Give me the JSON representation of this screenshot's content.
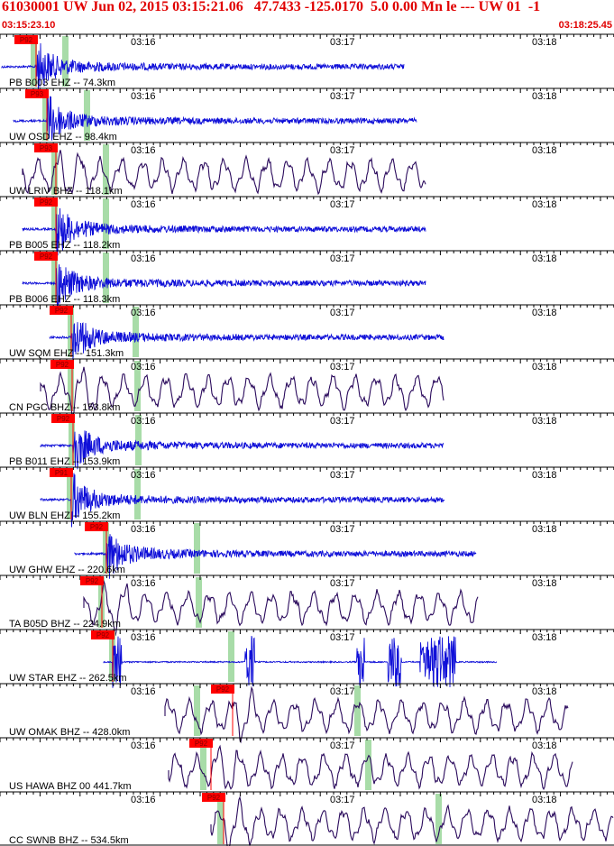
{
  "header": {
    "title": "61030001 UW Jun 02, 2015 03:15:21.06   47.7433 -125.0170  5.0 0.00 Mn le --- UW 01  -1",
    "start_time": "03:15:23.10",
    "end_time": "03:18:25.45"
  },
  "time_labels": [
    "03:16",
    "03:17",
    "03:18"
  ],
  "colors": {
    "blue": "#1010d8",
    "purple": "#2a0a5c",
    "pick": "#ff0000",
    "marker": "#a8dca8",
    "frame": "#000000"
  },
  "traces": [
    {
      "label": "PB B003 EHZ -- 74.3km",
      "pick": "P92",
      "color": "blue",
      "type": "hf"
    },
    {
      "label": "UW OSD EHZ -- 98.4km",
      "pick": "P93",
      "color": "blue",
      "type": "hf"
    },
    {
      "label": "UW LRIV BHZ -- 118.1km",
      "pick": "P93",
      "color": "purple",
      "type": "lf"
    },
    {
      "label": "PB B005 EHZ -- 118.2km",
      "pick": "P92",
      "color": "blue",
      "type": "hf"
    },
    {
      "label": "PB B006 EHZ -- 118.3km",
      "pick": "P92",
      "color": "blue",
      "type": "hf"
    },
    {
      "label": "UW SQM EHZ -- 151.3km",
      "pick": "P92",
      "color": "blue",
      "type": "hf"
    },
    {
      "label": "CN PGC BHZ -- 153.8km",
      "pick": "P92",
      "color": "purple",
      "type": "lf"
    },
    {
      "label": "PB B011 EHZ -- 153.9km",
      "pick": "P92",
      "color": "blue",
      "type": "hf"
    },
    {
      "label": "UW BLN EHZ -- 155.2km",
      "pick": "P91",
      "color": "blue",
      "type": "hf"
    },
    {
      "label": "UW GHW EHZ -- 220.6km",
      "pick": "P92",
      "color": "blue",
      "type": "hf"
    },
    {
      "label": "TA B05D BHZ -- 224.9km",
      "pick": "P92",
      "color": "purple",
      "type": "lf"
    },
    {
      "label": "UW STAR EHZ -- 262.5km",
      "pick": "P92",
      "color": "blue",
      "type": "star"
    },
    {
      "label": "UW OMAK BHZ -- 428.0km",
      "pick": "P92",
      "color": "purple",
      "type": "lf"
    },
    {
      "label": "US HAWA BHZ 00 441.7km",
      "pick": "P92",
      "color": "purple",
      "type": "lf"
    },
    {
      "label": "CC SWNB BHZ -- 534.5km",
      "pick": "P92",
      "color": "purple",
      "type": "lf"
    }
  ]
}
